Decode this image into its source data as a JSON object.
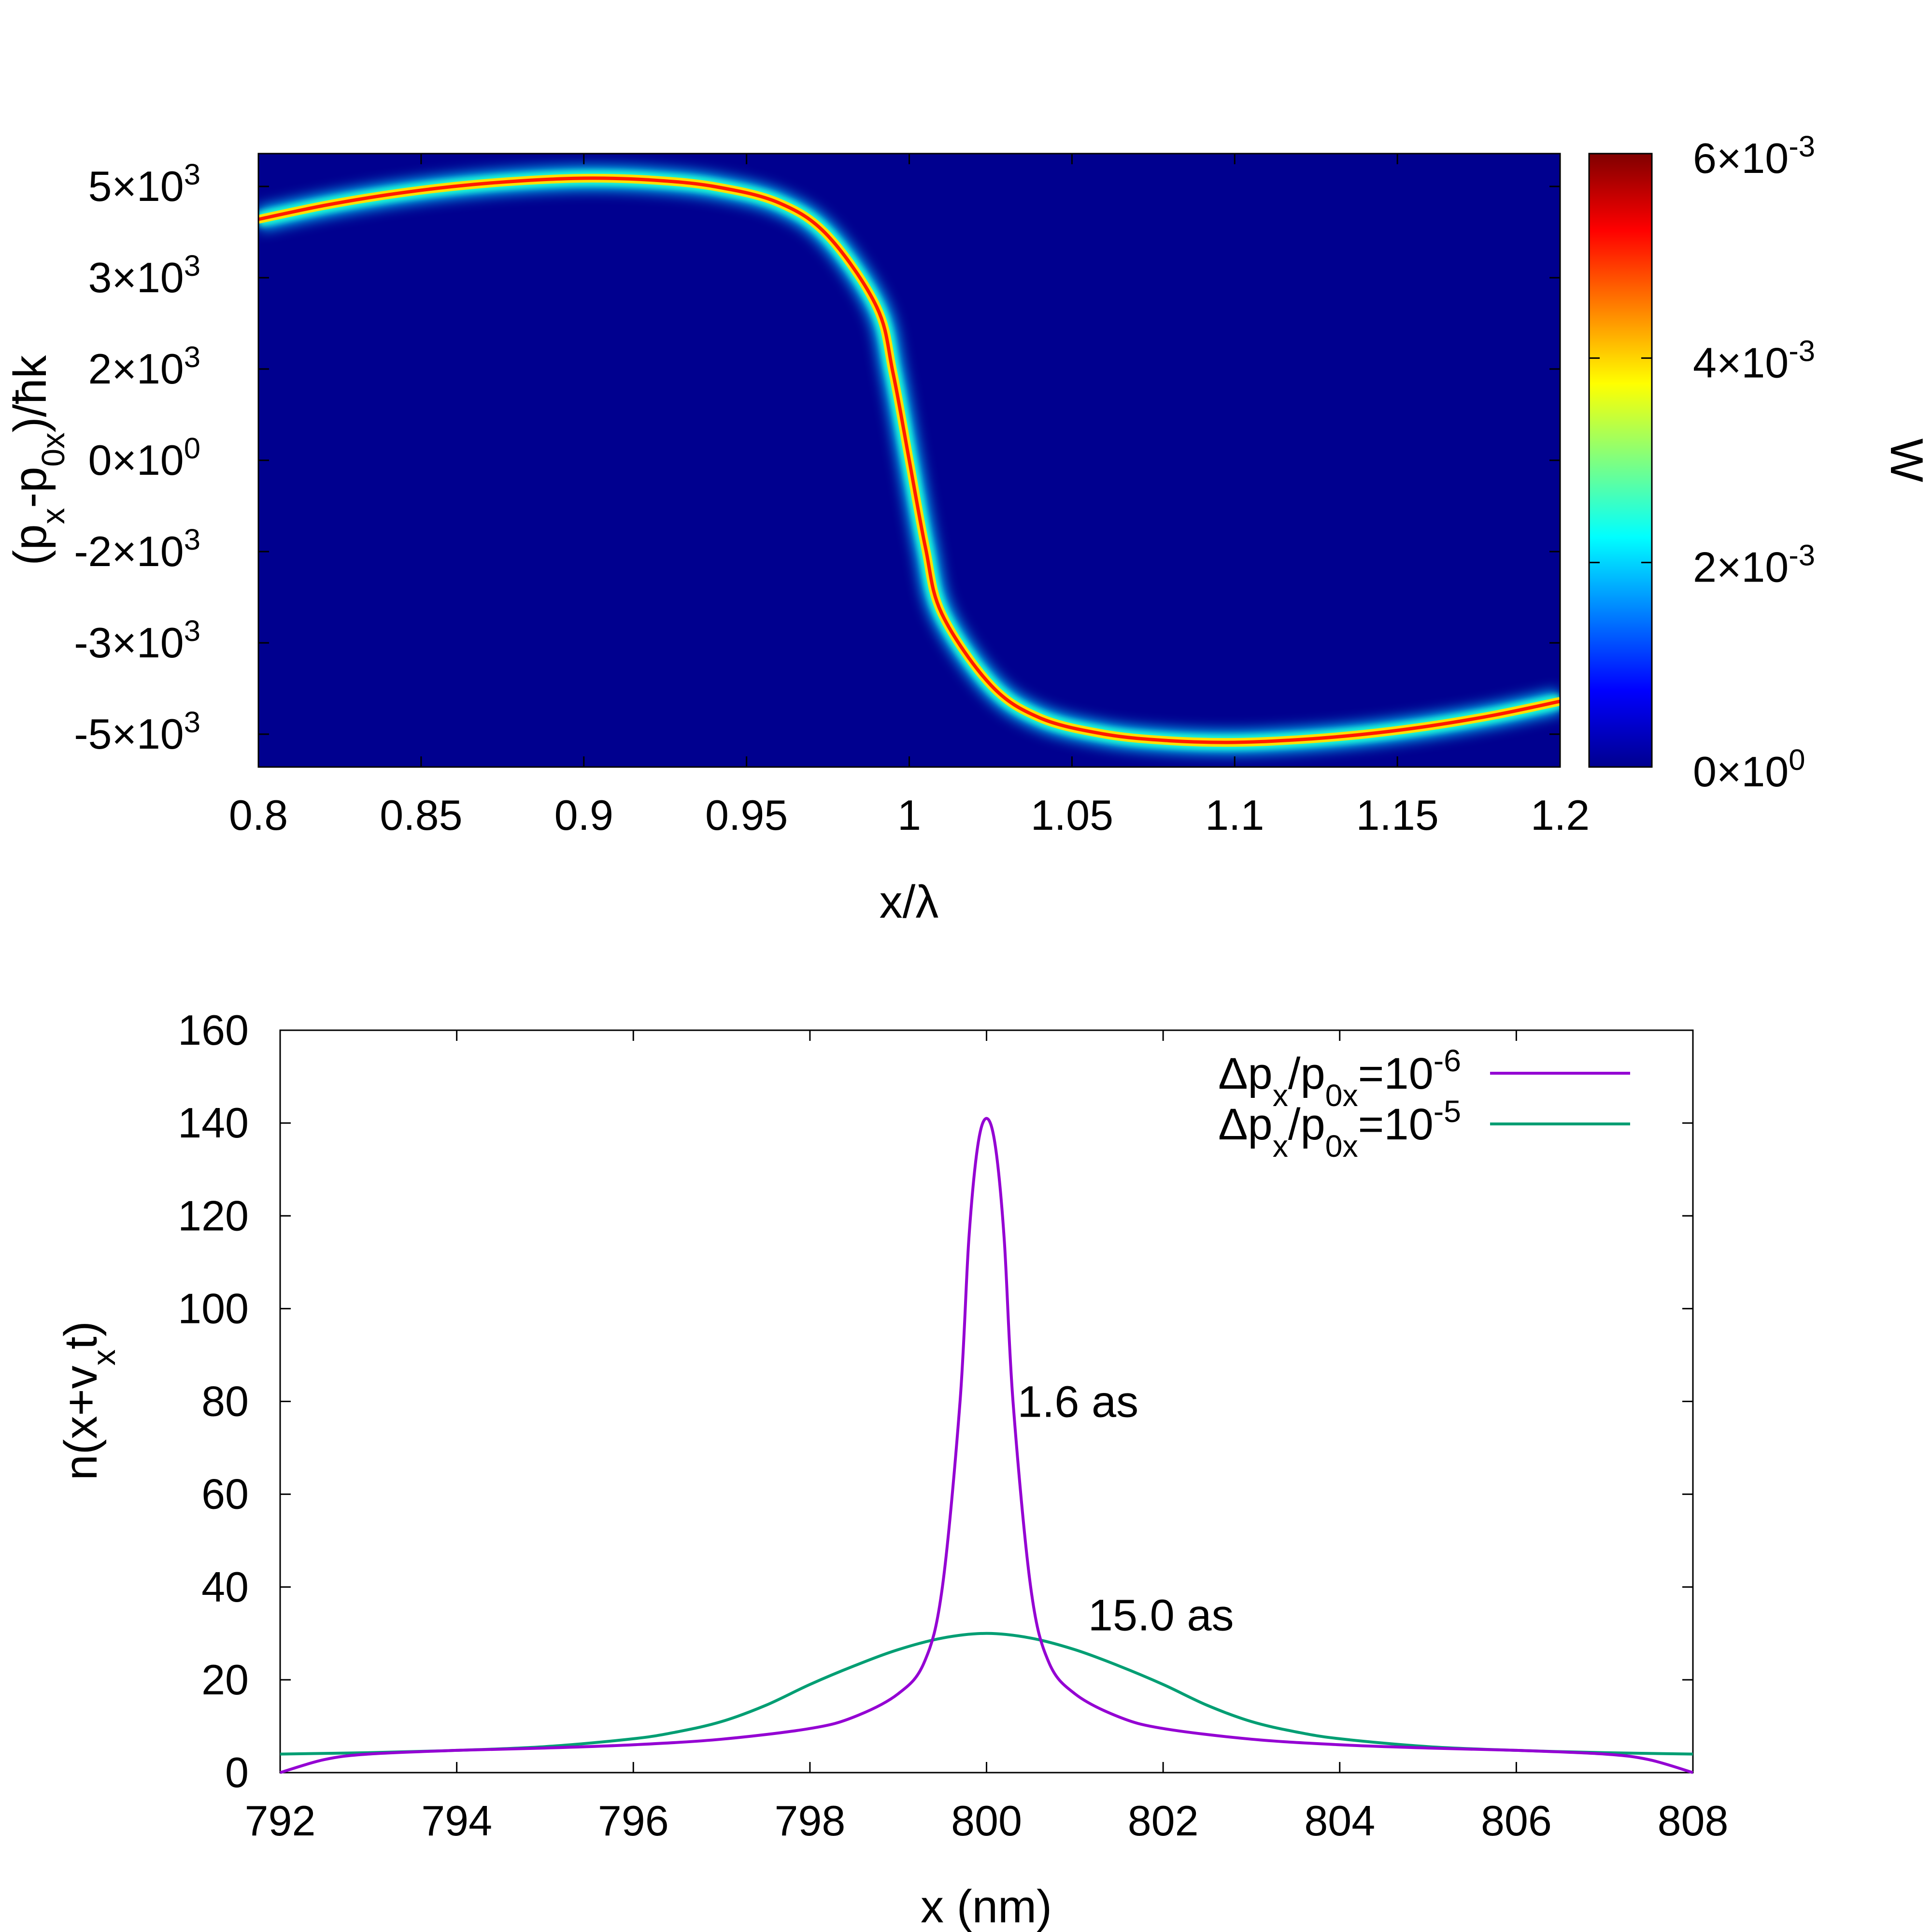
{
  "chart_data": [
    {
      "type": "heatmap",
      "title": "",
      "xlabel": "x/λ",
      "ylabel_parts": [
        "(p",
        "x",
        "-p",
        "0x",
        ")/ħk"
      ],
      "xlim": [
        0.8,
        1.2
      ],
      "ylim": [
        -5600,
        5600
      ],
      "x_ticks": [
        0.8,
        0.85,
        0.9,
        0.95,
        1.0,
        1.05,
        1.1,
        1.15,
        1.2
      ],
      "x_tick_labels": [
        "0.8",
        "0.85",
        "0.9",
        "0.95",
        "1",
        "1.05",
        "1.1",
        "1.15",
        "1.2"
      ],
      "y_ticks": [
        5000,
        3333,
        1667,
        0,
        -1667,
        -3333,
        -5000
      ],
      "y_tick_labels": [
        {
          "m": "5×10",
          "e": "3"
        },
        {
          "m": "3×10",
          "e": "3"
        },
        {
          "m": "2×10",
          "e": "3"
        },
        {
          "m": "0×10",
          "e": "0"
        },
        {
          "m": "-2×10",
          "e": "3"
        },
        {
          "m": "-3×10",
          "e": "3"
        },
        {
          "m": "-5×10",
          "e": "3"
        }
      ],
      "background_color": "#00008f",
      "colormap": "jet",
      "colorbar": {
        "label": "W",
        "range": [
          0,
          0.006
        ],
        "ticks": [
          0,
          0.002,
          0.004,
          0.006
        ],
        "tick_labels": [
          {
            "m": "0×10",
            "e": "0"
          },
          {
            "m": "2×10",
            "e": "-3"
          },
          {
            "m": "4×10",
            "e": "-3"
          },
          {
            "m": "6×10",
            "e": "-3"
          }
        ]
      },
      "curve_description": "phase-space trajectory",
      "curve": {
        "x": [
          0.8,
          0.82,
          0.84,
          0.86,
          0.88,
          0.9,
          0.92,
          0.94,
          0.96,
          0.975,
          0.99,
          0.995,
          1.0,
          1.005,
          1.01,
          1.025,
          1.04,
          1.06,
          1.08,
          1.1,
          1.12,
          1.14,
          1.16,
          1.18,
          1.2
        ],
        "y": [
          4400,
          4650,
          4850,
          5000,
          5100,
          5150,
          5120,
          5000,
          4700,
          4100,
          2800,
          1600,
          0,
          -1600,
          -2800,
          -4100,
          -4700,
          -5000,
          -5120,
          -5150,
          -5100,
          -5000,
          -4850,
          -4650,
          -4400
        ]
      }
    },
    {
      "type": "line",
      "title": "",
      "xlabel": "x (nm)",
      "ylabel_parts": [
        "n(x+v",
        "x",
        "t)"
      ],
      "xlim": [
        792,
        808
      ],
      "ylim": [
        0,
        160
      ],
      "x_ticks": [
        792,
        794,
        796,
        798,
        800,
        802,
        804,
        806,
        808
      ],
      "y_ticks": [
        0,
        20,
        40,
        60,
        80,
        100,
        120,
        140,
        160
      ],
      "grid": false,
      "legend_position": "top-right",
      "series": [
        {
          "name_parts": {
            "base": "Δp",
            "sub1": "x",
            "mid": "/p",
            "sub2": "0x",
            "eq": "=10",
            "sup": "-6"
          },
          "color": "#9400d3",
          "x": [
            792,
            792.5,
            793,
            794,
            795,
            796,
            797,
            798,
            798.5,
            799,
            799.3,
            799.5,
            799.7,
            799.8,
            799.9,
            800,
            800.1,
            800.2,
            800.3,
            800.5,
            800.7,
            801,
            801.5,
            802,
            803,
            804,
            805,
            806,
            807,
            807.5,
            808
          ],
          "y": [
            0,
            2.8,
            4,
            4.8,
            5.3,
            6,
            7.2,
            9.5,
            12,
            17,
            24,
            40,
            80,
            115,
            135,
            141,
            135,
            115,
            80,
            40,
            24,
            17,
            12,
            9.5,
            7.2,
            6,
            5.3,
            4.8,
            4,
            2.8,
            0
          ]
        },
        {
          "name_parts": {
            "base": "Δp",
            "sub1": "x",
            "mid": "/p",
            "sub2": "0x",
            "eq": "=10",
            "sup": "-5"
          },
          "color": "#009e73",
          "x": [
            792,
            793,
            794,
            795,
            796,
            796.5,
            797,
            797.5,
            798,
            798.5,
            799,
            799.5,
            800,
            800.5,
            801,
            801.5,
            802,
            802.5,
            803,
            803.5,
            804,
            805,
            806,
            807,
            808
          ],
          "y": [
            4,
            4.3,
            4.8,
            5.6,
            7.3,
            8.8,
            11,
            14.5,
            19,
            23,
            26.5,
            29,
            30,
            29,
            26.5,
            23,
            19,
            14.5,
            11,
            8.8,
            7.3,
            5.6,
            4.8,
            4.3,
            4
          ]
        }
      ],
      "annotations": [
        {
          "text": "1.6 as",
          "x": 800.35,
          "y": 80
        },
        {
          "text": "15.0 as",
          "x": 801.15,
          "y": 34
        }
      ]
    }
  ]
}
